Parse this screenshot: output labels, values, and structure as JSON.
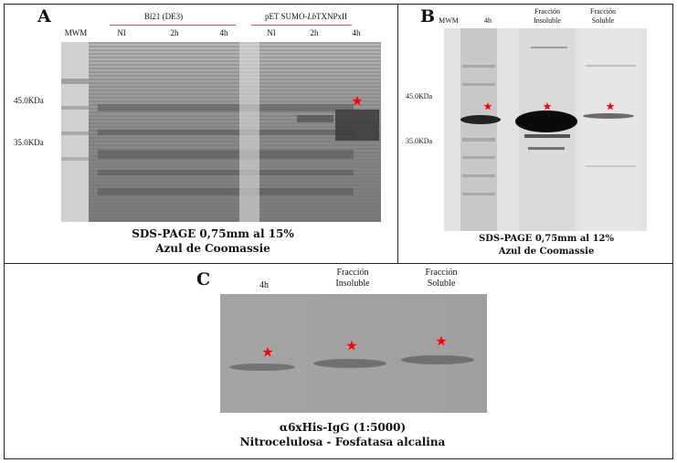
{
  "panel_a": {
    "letter": "A",
    "mwm_label": "MWM",
    "group1": "Bl21 (DE3)",
    "group2": "pET SUMO-LbTXNPxII",
    "lanes": [
      "NI",
      "2h",
      "4h",
      "NI",
      "2h",
      "4h"
    ],
    "markers": [
      "45.0KDa",
      "35.0KDa"
    ],
    "caption_line1": "SDS-PAGE  0,75mm al 15%",
    "caption_line2": "Azul de Coomassie"
  },
  "panel_b": {
    "letter": "B",
    "mwm_label": "MWM",
    "lane1": "4h",
    "lane2_line1": "Fracción",
    "lane2_line2": "Insoluble",
    "lane3_line1": "Fracción",
    "lane3_line2": "Soluble",
    "markers": [
      "45.0KDa",
      "35.0KDa"
    ],
    "caption_line1": "SDS-PAGE  0,75mm al 12%",
    "caption_line2": "Azul de Coomassie"
  },
  "panel_c": {
    "letter": "C",
    "lane1": "4h",
    "lane2_line1": "Fracción",
    "lane2_line2": "Insoluble",
    "lane3_line1": "Fracción",
    "lane3_line2": "Soluble",
    "caption_line1": "α6xHis-IgG (1:5000)",
    "caption_line2": "Nitrocelulosa - Fosfatasa alcalina"
  },
  "star_symbol": "★",
  "star_color": "#ff0000"
}
